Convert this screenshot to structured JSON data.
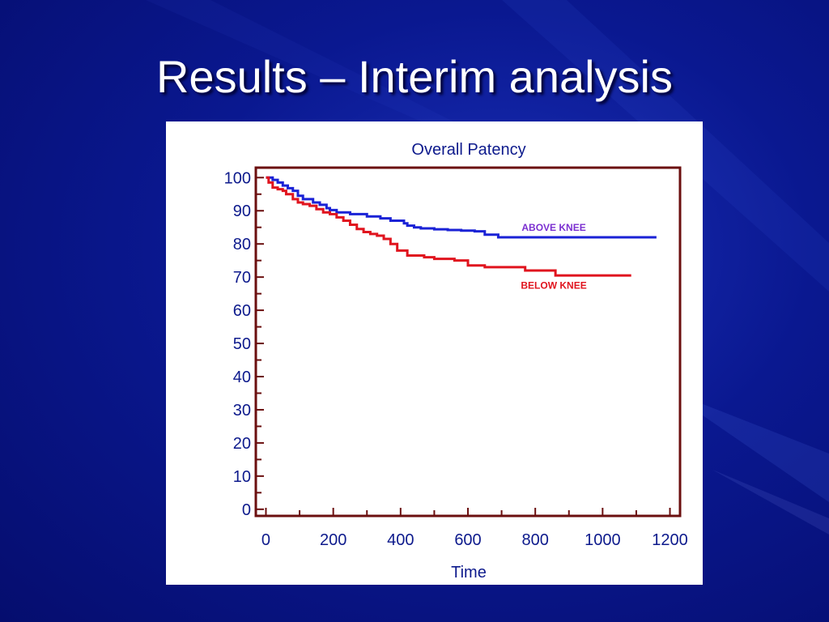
{
  "slide": {
    "title": "Results – Interim analysis",
    "background_color": "#0a1890"
  },
  "chart_data": {
    "type": "line",
    "title": "Overall Patency",
    "xlabel": "Time",
    "ylabel": "",
    "xlim": [
      -30,
      1230
    ],
    "ylim": [
      -2,
      103
    ],
    "xticks": [
      0,
      200,
      400,
      600,
      800,
      1000,
      1200
    ],
    "yticks": [
      0,
      10,
      20,
      30,
      40,
      50,
      60,
      70,
      80,
      90,
      100
    ],
    "grid": false,
    "frame_color": "#6b0f0f",
    "text_color": "#0d1a8c",
    "series": [
      {
        "name": "ABOVE KNEE",
        "color": "#1a22d6",
        "step": true,
        "x": [
          0,
          20,
          35,
          50,
          65,
          80,
          95,
          110,
          140,
          160,
          180,
          190,
          210,
          250,
          300,
          340,
          370,
          410,
          420,
          440,
          460,
          500,
          540,
          580,
          620,
          650,
          690,
          1160
        ],
        "y": [
          100,
          99.3,
          98.5,
          97.6,
          96.8,
          96,
          94.5,
          93.5,
          92.5,
          91.8,
          90.8,
          90.2,
          89.5,
          89,
          88.3,
          87.7,
          87,
          86.2,
          85.5,
          85,
          84.7,
          84.4,
          84.2,
          84,
          83.8,
          82.8,
          82,
          82
        ]
      },
      {
        "name": "BELOW KNEE",
        "color": "#e0141e",
        "step": true,
        "x": [
          0,
          8,
          20,
          35,
          50,
          60,
          80,
          95,
          110,
          130,
          150,
          170,
          190,
          210,
          230,
          250,
          270,
          290,
          310,
          330,
          350,
          370,
          390,
          420,
          470,
          500,
          560,
          600,
          650,
          700,
          770,
          860,
          1085
        ],
        "y": [
          100,
          98.5,
          97,
          96.5,
          96,
          95,
          93.5,
          92.5,
          92,
          91.5,
          90.5,
          89.5,
          89,
          88,
          87,
          85.8,
          84.5,
          83.6,
          83,
          82.5,
          81.5,
          80,
          78,
          76.5,
          76,
          75.5,
          75,
          73.5,
          73,
          73,
          72,
          70.5,
          70.5
        ]
      }
    ],
    "annotations": [
      {
        "text": "ABOVE KNEE",
        "x": 855,
        "y": 84,
        "color": "#7b2fd0"
      },
      {
        "text": "BELOW KNEE",
        "x": 855,
        "y": 66.5,
        "color": "#e0141e"
      }
    ]
  }
}
